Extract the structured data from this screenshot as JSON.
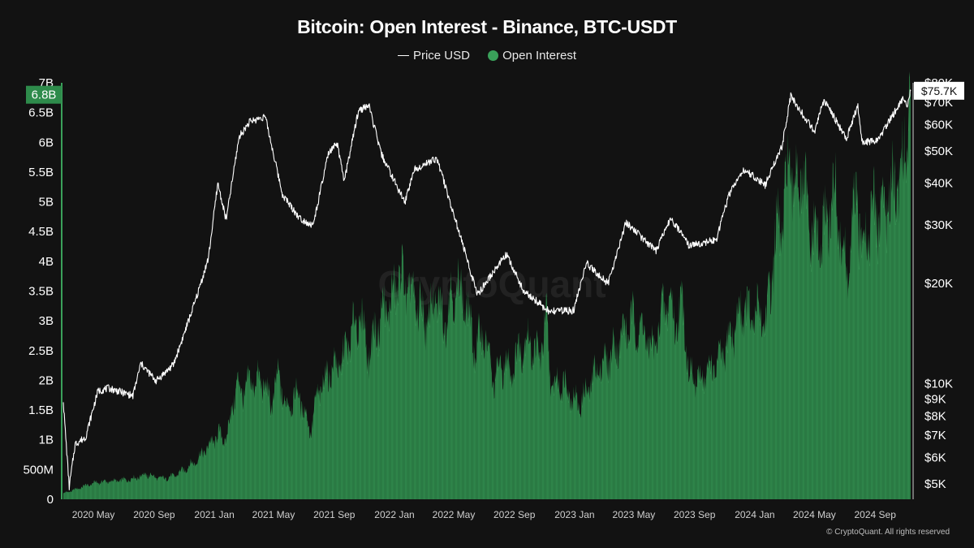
{
  "chart_data": {
    "type": "area",
    "title": "Bitcoin: Open Interest - Binance, BTC-USDT",
    "series": [
      {
        "name": "Price USD",
        "kind": "line",
        "axis": "right",
        "color": "#ffffff"
      },
      {
        "name": "Open Interest",
        "kind": "area",
        "axis": "left",
        "color": "#3aa15a"
      }
    ],
    "x_range": [
      "2020-03-01",
      "2024-11-12"
    ],
    "x_ticks": [
      {
        "date": "2020-05-01",
        "label": "2020 May"
      },
      {
        "date": "2020-09-01",
        "label": "2020 Sep"
      },
      {
        "date": "2021-01-01",
        "label": "2021 Jan"
      },
      {
        "date": "2021-05-01",
        "label": "2021 May"
      },
      {
        "date": "2021-09-01",
        "label": "2021 Sep"
      },
      {
        "date": "2022-01-01",
        "label": "2022 Jan"
      },
      {
        "date": "2022-05-01",
        "label": "2022 May"
      },
      {
        "date": "2022-09-01",
        "label": "2022 Sep"
      },
      {
        "date": "2023-01-01",
        "label": "2023 Jan"
      },
      {
        "date": "2023-05-01",
        "label": "2023 May"
      },
      {
        "date": "2023-09-01",
        "label": "2023 Sep"
      },
      {
        "date": "2024-01-01",
        "label": "2024 Jan"
      },
      {
        "date": "2024-05-01",
        "label": "2024 May"
      },
      {
        "date": "2024-09-01",
        "label": "2024 Sep"
      }
    ],
    "y_left": {
      "range": [
        0,
        7000000000
      ],
      "scale": "linear",
      "ticks": [
        {
          "value": 0,
          "label": "0"
        },
        {
          "value": 500000000,
          "label": "500M"
        },
        {
          "value": 1000000000,
          "label": "1B"
        },
        {
          "value": 1500000000,
          "label": "1.5B"
        },
        {
          "value": 2000000000,
          "label": "2B"
        },
        {
          "value": 2500000000,
          "label": "2.5B"
        },
        {
          "value": 3000000000,
          "label": "3B"
        },
        {
          "value": 3500000000,
          "label": "3.5B"
        },
        {
          "value": 4000000000,
          "label": "4B"
        },
        {
          "value": 4500000000,
          "label": "4.5B"
        },
        {
          "value": 5000000000,
          "label": "5B"
        },
        {
          "value": 5500000000,
          "label": "5.5B"
        },
        {
          "value": 6000000000,
          "label": "6B"
        },
        {
          "value": 6500000000,
          "label": "6.5B"
        },
        {
          "value": 7000000000,
          "label": "7B"
        }
      ]
    },
    "y_right": {
      "range": [
        4500,
        80000
      ],
      "scale": "log",
      "ticks": [
        {
          "value": 5000,
          "label": "$5K"
        },
        {
          "value": 6000,
          "label": "$6K"
        },
        {
          "value": 7000,
          "label": "$7K"
        },
        {
          "value": 8000,
          "label": "$8K"
        },
        {
          "value": 9000,
          "label": "$9K"
        },
        {
          "value": 10000,
          "label": "$10K"
        },
        {
          "value": 20000,
          "label": "$20K"
        },
        {
          "value": 30000,
          "label": "$30K"
        },
        {
          "value": 40000,
          "label": "$40K"
        },
        {
          "value": 50000,
          "label": "$50K"
        },
        {
          "value": 60000,
          "label": "$60K"
        },
        {
          "value": 70000,
          "label": "$70K"
        },
        {
          "value": 80000,
          "label": "$80K"
        }
      ]
    },
    "current_labels": {
      "open_interest": {
        "value": 6800000000,
        "label": "6.8B"
      },
      "price": {
        "value": 75700,
        "label": "$75.7K"
      }
    },
    "open_interest_points": [
      [
        "2020-03-01",
        100000000
      ],
      [
        "2020-03-20",
        150000000
      ],
      [
        "2020-04-15",
        230000000
      ],
      [
        "2020-05-10",
        290000000
      ],
      [
        "2020-06-15",
        310000000
      ],
      [
        "2020-07-15",
        340000000
      ],
      [
        "2020-08-15",
        420000000
      ],
      [
        "2020-09-15",
        350000000
      ],
      [
        "2020-10-10",
        390000000
      ],
      [
        "2020-11-01",
        500000000
      ],
      [
        "2020-11-25",
        650000000
      ],
      [
        "2020-12-20",
        900000000
      ],
      [
        "2021-01-10",
        1100000000
      ],
      [
        "2021-01-25",
        1000000000
      ],
      [
        "2021-02-15",
        1950000000
      ],
      [
        "2021-03-01",
        1800000000
      ],
      [
        "2021-03-15",
        2000000000
      ],
      [
        "2021-04-10",
        2000000000
      ],
      [
        "2021-04-25",
        1600000000
      ],
      [
        "2021-05-12",
        2100000000
      ],
      [
        "2021-05-25",
        1550000000
      ],
      [
        "2021-06-20",
        1800000000
      ],
      [
        "2021-07-15",
        1150000000
      ],
      [
        "2021-07-30",
        1800000000
      ],
      [
        "2021-08-25",
        2200000000
      ],
      [
        "2021-09-15",
        2300000000
      ],
      [
        "2021-10-10",
        2900000000
      ],
      [
        "2021-10-25",
        3100000000
      ],
      [
        "2021-11-10",
        2450000000
      ],
      [
        "2021-11-25",
        2900000000
      ],
      [
        "2021-12-10",
        3200000000
      ],
      [
        "2021-12-25",
        3300000000
      ],
      [
        "2022-01-10",
        3800000000
      ],
      [
        "2022-01-25",
        3600000000
      ],
      [
        "2022-02-15",
        3300000000
      ],
      [
        "2022-03-10",
        3000000000
      ],
      [
        "2022-03-25",
        3450000000
      ],
      [
        "2022-04-10",
        3000000000
      ],
      [
        "2022-04-25",
        3400000000
      ],
      [
        "2022-05-10",
        3600000000
      ],
      [
        "2022-05-25",
        3300000000
      ],
      [
        "2022-06-15",
        2500000000
      ],
      [
        "2022-06-30",
        2900000000
      ],
      [
        "2022-07-20",
        2000000000
      ],
      [
        "2022-08-10",
        2300000000
      ],
      [
        "2022-08-25",
        2200000000
      ],
      [
        "2022-09-15",
        2600000000
      ],
      [
        "2022-10-01",
        2700000000
      ],
      [
        "2022-10-20",
        2400000000
      ],
      [
        "2022-11-05",
        3000000000
      ],
      [
        "2022-11-15",
        1900000000
      ],
      [
        "2022-12-10",
        2000000000
      ],
      [
        "2022-12-30",
        1700000000
      ],
      [
        "2023-01-10",
        1600000000
      ],
      [
        "2023-01-25",
        1800000000
      ],
      [
        "2023-02-15",
        2200000000
      ],
      [
        "2023-03-01",
        2300000000
      ],
      [
        "2023-03-20",
        2500000000
      ],
      [
        "2023-04-10",
        2800000000
      ],
      [
        "2023-04-25",
        3000000000
      ],
      [
        "2023-05-15",
        2900000000
      ],
      [
        "2023-06-10",
        2500000000
      ],
      [
        "2023-06-25",
        3100000000
      ],
      [
        "2023-07-10",
        3400000000
      ],
      [
        "2023-07-25",
        3000000000
      ],
      [
        "2023-08-10",
        3300000000
      ],
      [
        "2023-08-20",
        2100000000
      ],
      [
        "2023-09-10",
        2000000000
      ],
      [
        "2023-10-01",
        2200000000
      ],
      [
        "2023-10-20",
        2300000000
      ],
      [
        "2023-11-05",
        2600000000
      ],
      [
        "2023-11-25",
        3000000000
      ],
      [
        "2023-12-10",
        3300000000
      ],
      [
        "2023-12-25",
        3000000000
      ],
      [
        "2024-01-10",
        3200000000
      ],
      [
        "2024-01-25",
        3000000000
      ],
      [
        "2024-02-10",
        4300000000
      ],
      [
        "2024-02-28",
        4800000000
      ],
      [
        "2024-03-10",
        5700000000
      ],
      [
        "2024-03-20",
        5300000000
      ],
      [
        "2024-04-05",
        5500000000
      ],
      [
        "2024-04-20",
        4600000000
      ],
      [
        "2024-05-10",
        4300000000
      ],
      [
        "2024-05-25",
        4700000000
      ],
      [
        "2024-06-10",
        5200000000
      ],
      [
        "2024-06-25",
        4400000000
      ],
      [
        "2024-07-05",
        3700000000
      ],
      [
        "2024-07-25",
        5100000000
      ],
      [
        "2024-08-05",
        4400000000
      ],
      [
        "2024-08-25",
        4800000000
      ],
      [
        "2024-09-10",
        4900000000
      ],
      [
        "2024-09-25",
        5000000000
      ],
      [
        "2024-10-10",
        5400000000
      ],
      [
        "2024-10-25",
        5500000000
      ],
      [
        "2024-11-05",
        6200000000
      ],
      [
        "2024-11-12",
        6800000000
      ]
    ],
    "price_points": [
      [
        "2020-03-01",
        8800
      ],
      [
        "2020-03-13",
        4900
      ],
      [
        "2020-03-25",
        6600
      ],
      [
        "2020-04-15",
        6900
      ],
      [
        "2020-05-10",
        9500
      ],
      [
        "2020-06-01",
        9700
      ],
      [
        "2020-07-20",
        9200
      ],
      [
        "2020-08-05",
        11500
      ],
      [
        "2020-09-05",
        10200
      ],
      [
        "2020-10-10",
        11400
      ],
      [
        "2020-10-25",
        13200
      ],
      [
        "2020-11-25",
        18000
      ],
      [
        "2020-12-20",
        23800
      ],
      [
        "2021-01-08",
        40000
      ],
      [
        "2021-01-25",
        31000
      ],
      [
        "2021-02-20",
        55000
      ],
      [
        "2021-03-13",
        61000
      ],
      [
        "2021-04-14",
        63500
      ],
      [
        "2021-05-19",
        37000
      ],
      [
        "2021-06-22",
        31500
      ],
      [
        "2021-07-20",
        29800
      ],
      [
        "2021-08-20",
        49000
      ],
      [
        "2021-09-07",
        52500
      ],
      [
        "2021-09-21",
        40500
      ],
      [
        "2021-10-20",
        66000
      ],
      [
        "2021-11-10",
        68500
      ],
      [
        "2021-12-05",
        49000
      ],
      [
        "2022-01-22",
        35000
      ],
      [
        "2022-02-10",
        44000
      ],
      [
        "2022-03-28",
        47500
      ],
      [
        "2022-05-12",
        28500
      ],
      [
        "2022-06-18",
        18500
      ],
      [
        "2022-08-15",
        24500
      ],
      [
        "2022-09-20",
        19000
      ],
      [
        "2022-11-10",
        16500
      ],
      [
        "2022-12-30",
        16600
      ],
      [
        "2023-01-25",
        23000
      ],
      [
        "2023-03-10",
        20000
      ],
      [
        "2023-04-15",
        30500
      ],
      [
        "2023-06-15",
        25000
      ],
      [
        "2023-07-15",
        31500
      ],
      [
        "2023-08-20",
        26000
      ],
      [
        "2023-10-15",
        27000
      ],
      [
        "2023-11-10",
        37000
      ],
      [
        "2023-12-10",
        44000
      ],
      [
        "2024-01-22",
        39500
      ],
      [
        "2024-02-25",
        51500
      ],
      [
        "2024-03-14",
        73000
      ],
      [
        "2024-05-01",
        57000
      ],
      [
        "2024-05-20",
        71000
      ],
      [
        "2024-07-05",
        54500
      ],
      [
        "2024-07-28",
        68500
      ],
      [
        "2024-08-05",
        53000
      ],
      [
        "2024-09-06",
        53800
      ],
      [
        "2024-10-29",
        72500
      ],
      [
        "2024-11-05",
        68500
      ],
      [
        "2024-11-12",
        75700
      ]
    ]
  },
  "watermark": "CryptoQuant",
  "footer": {
    "copyright": "© CryptoQuant. All rights reserved"
  },
  "colors": {
    "background": "#121212",
    "open_interest": "#3aa15a",
    "oi_label_bg": "#2e8b4b",
    "price": "#ffffff"
  }
}
